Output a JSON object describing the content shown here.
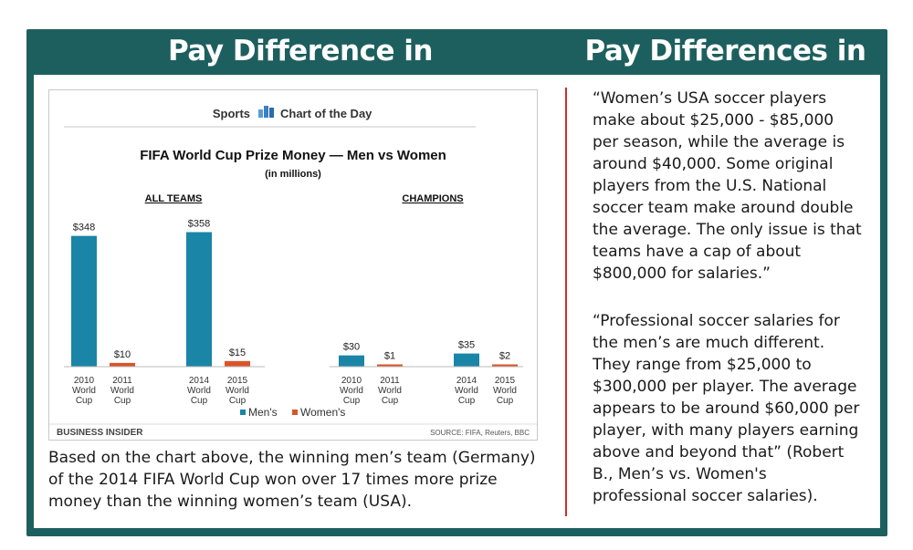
{
  "headings": {
    "fifa": "Pay Difference in FIFA",
    "mls": "Pay Differences in MLS"
  },
  "chart_header": {
    "left": "Sports",
    "right": "Chart of the Day"
  },
  "chart_data": {
    "type": "bar",
    "title": "FIFA World Cup Prize Money — Men vs Women",
    "subtitle": "(in millions)",
    "groups": [
      {
        "label": "ALL TEAMS",
        "items": [
          {
            "category": "2010 World Cup",
            "series": "Men's",
            "value": 348,
            "label": "$348"
          },
          {
            "category": "2011 World Cup",
            "series": "Women's",
            "value": 10,
            "label": "$10"
          },
          {
            "category": "2014 World Cup",
            "series": "Men's",
            "value": 358,
            "label": "$358"
          },
          {
            "category": "2015 World Cup",
            "series": "Women's",
            "value": 15,
            "label": "$15"
          }
        ]
      },
      {
        "label": "CHAMPIONS",
        "items": [
          {
            "category": "2010 World Cup",
            "series": "Men's",
            "value": 30,
            "label": "$30"
          },
          {
            "category": "2011 World Cup",
            "series": "Women's",
            "value": 1,
            "label": "$1"
          },
          {
            "category": "2014 World Cup",
            "series": "Men's",
            "value": 35,
            "label": "$35"
          },
          {
            "category": "2015 World Cup",
            "series": "Women's",
            "value": 2,
            "label": "$2"
          }
        ]
      }
    ],
    "series": [
      {
        "name": "Men's",
        "color": "#1a85a6"
      },
      {
        "name": "Women's",
        "color": "#d9542a"
      }
    ],
    "legend_position": "bottom",
    "grid": false,
    "brand": "BUSINESS INSIDER",
    "source": "SOURCE: FIFA, Reuters, BBC"
  },
  "caption": "Based on the chart above, the winning men’s team (Germany) of the 2014 FIFA World Cup won over 17 times more prize money than the winning women’s team (USA).",
  "quotes": [
    "“Women’s USA soccer players make about $25,000 - $85,000 per season, while the average is around $40,000. Some original players from the U.S. National soccer team make around double the average. The only issue is that teams have a cap of about $800,000 for salaries.”",
    "“Professional soccer salaries for the men’s are much different. They range from $25,000 to $300,000 per player. The average appears to be around $60,000 per player, with many players earning above and beyond that” (Robert B., Men’s vs. Women's professional soccer salaries)."
  ]
}
